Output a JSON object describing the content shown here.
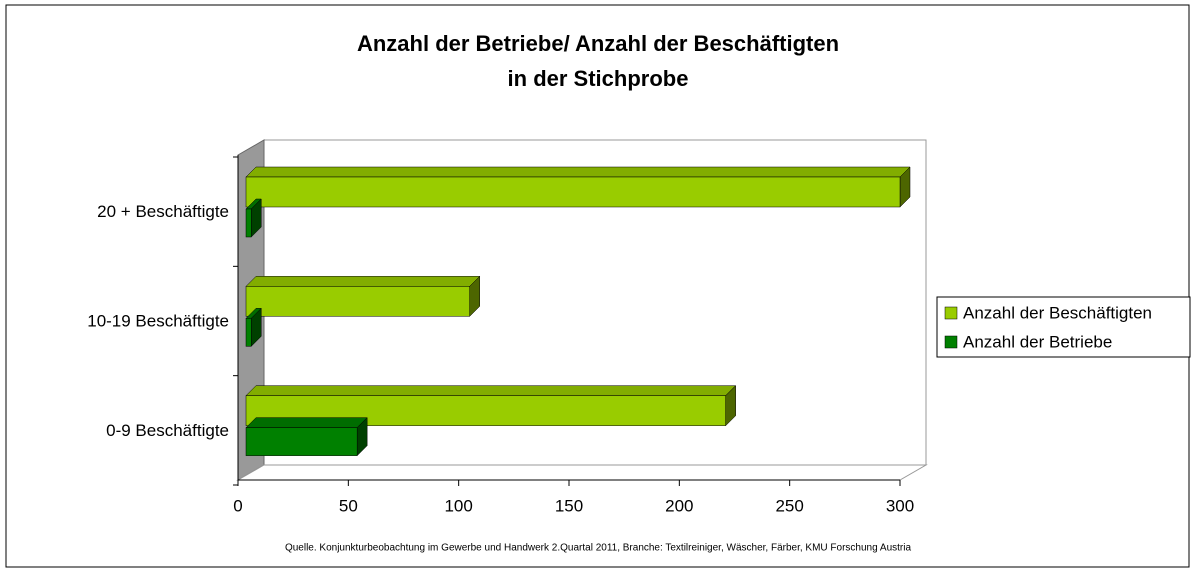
{
  "chart_data": {
    "type": "bar3d_horizontal",
    "title": "Anzahl der Betriebe/ Anzahl der Beschäftigten",
    "subtitle": "in der Stichprobe",
    "categories": [
      "0-9 Beschäftigte",
      "10-19 Beschäftigte",
      "20 + Beschäftigte"
    ],
    "series": [
      {
        "name": "Anzahl der Beschäftigten",
        "color": "#99cc00",
        "values": [
          221,
          105,
          300
        ]
      },
      {
        "name": "Anzahl der Betriebe",
        "color": "#008000",
        "values": [
          54,
          6,
          6
        ]
      }
    ],
    "xlim": [
      0,
      300
    ],
    "xticks": [
      0,
      50,
      100,
      150,
      200,
      250,
      300
    ],
    "legend": "right",
    "source": "Quelle. Konjunkturbeobachtung im Gewerbe und Handwerk 2.Quartal 2011, Branche: Textilreiniger, Wäscher, Färber, KMU Forschung Austria"
  }
}
